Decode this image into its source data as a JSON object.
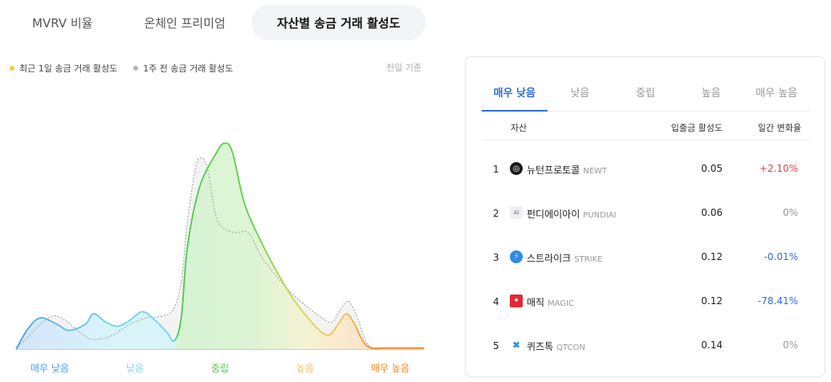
{
  "top_tabs": [
    {
      "label": "MVRV 비율",
      "active": false
    },
    {
      "label": "온체인 프리미엄",
      "active": false
    },
    {
      "label": "자산별 송금 거래 활성도",
      "active": true
    }
  ],
  "legend": {
    "current": {
      "label": "최근 1일 송금 거래 활성도",
      "color": "#f2c94c"
    },
    "previous": {
      "label": "1주 전 송금 거래 활성도",
      "color": "#b5b5b5"
    }
  },
  "basis_label": "전일 기준",
  "chart_data": {
    "type": "area",
    "x_range": [
      0,
      100
    ],
    "y_range": [
      0,
      100
    ],
    "categories": [
      {
        "label": "매우 낮음",
        "color": "#4a9ee8"
      },
      {
        "label": "낮음",
        "color": "#7fd8ea"
      },
      {
        "label": "중립",
        "color": "#4cc84a"
      },
      {
        "label": "높음",
        "color": "#f3c05c"
      },
      {
        "label": "매우 높음",
        "color": "#f0891c"
      }
    ],
    "series": [
      {
        "name": "최근 1일 송금 거래 활성도",
        "style": "gradient-area",
        "points": [
          [
            0,
            0
          ],
          [
            3,
            10
          ],
          [
            6,
            15
          ],
          [
            10,
            12
          ],
          [
            13,
            9
          ],
          [
            17,
            12
          ],
          [
            19,
            17
          ],
          [
            22,
            13
          ],
          [
            25,
            11
          ],
          [
            28,
            14
          ],
          [
            31,
            18
          ],
          [
            34,
            14
          ],
          [
            37,
            8
          ],
          [
            38.8,
            4
          ],
          [
            40.5,
            15
          ],
          [
            42,
            49
          ],
          [
            45,
            78
          ],
          [
            49,
            94
          ],
          [
            51,
            99
          ],
          [
            53,
            95
          ],
          [
            56,
            70
          ],
          [
            60,
            52
          ],
          [
            64,
            37
          ],
          [
            68,
            24
          ],
          [
            72,
            14
          ],
          [
            75,
            8
          ],
          [
            77,
            7
          ],
          [
            79,
            12
          ],
          [
            81,
            17
          ],
          [
            83,
            12
          ],
          [
            85,
            4
          ],
          [
            87,
            0.5
          ],
          [
            90,
            0.5
          ],
          [
            95,
            0.5
          ],
          [
            100,
            0.5
          ]
        ]
      },
      {
        "name": "1주 전 송금 거래 활성도",
        "style": "dashed-grey-area",
        "points": [
          [
            0,
            0
          ],
          [
            3,
            6
          ],
          [
            6,
            12
          ],
          [
            9,
            16
          ],
          [
            12,
            14
          ],
          [
            15,
            9
          ],
          [
            18,
            5
          ],
          [
            21,
            5
          ],
          [
            24,
            7
          ],
          [
            28,
            12
          ],
          [
            32,
            15
          ],
          [
            36,
            16
          ],
          [
            38.5,
            19
          ],
          [
            40.5,
            32
          ],
          [
            42,
            61
          ],
          [
            44,
            87
          ],
          [
            45.5,
            92
          ],
          [
            47,
            86
          ],
          [
            49,
            64
          ],
          [
            51,
            58
          ],
          [
            54,
            56
          ],
          [
            57,
            56
          ],
          [
            60,
            45
          ],
          [
            63,
            37
          ],
          [
            67,
            28
          ],
          [
            71,
            21
          ],
          [
            75,
            15
          ],
          [
            77.5,
            13
          ],
          [
            79.5,
            19
          ],
          [
            81.5,
            23
          ],
          [
            83.5,
            16
          ],
          [
            85.5,
            5
          ],
          [
            87,
            1
          ],
          [
            90,
            0.5
          ],
          [
            95,
            0.5
          ],
          [
            100,
            0.5
          ]
        ]
      }
    ]
  },
  "card": {
    "tabs": [
      {
        "label": "매우 낮음",
        "active": true
      },
      {
        "label": "낮음",
        "active": false
      },
      {
        "label": "중립",
        "active": false
      },
      {
        "label": "높음",
        "active": false
      },
      {
        "label": "매우 높음",
        "active": false
      }
    ],
    "headers": {
      "asset": "자산",
      "activity": "입출금 활성도",
      "change": "일간 변화율"
    },
    "rows": [
      {
        "rank": "1",
        "name": "뉴턴프로토콜",
        "ticker": "NEWT",
        "activity": "0.05",
        "change": "+2.10%",
        "change_color": "#e5404c",
        "icon": "newton-protocol-icon",
        "icon_bg": "#1b1b1b",
        "icon_glyph": "◎"
      },
      {
        "rank": "2",
        "name": "펀디에이아이",
        "ticker": "PUNDIAI",
        "activity": "0.06",
        "change": "0%",
        "change_color": "#9a9a9a",
        "icon": "pundiai-icon",
        "icon_bg": "#e8e8ee",
        "icon_glyph": "AI"
      },
      {
        "rank": "3",
        "name": "스트라이크",
        "ticker": "STRIKE",
        "activity": "0.12",
        "change": "-0.01%",
        "change_color": "#2f6ed8",
        "icon": "strike-bolt-icon",
        "icon_bg": "#2f8be8",
        "icon_glyph": "⚡"
      },
      {
        "rank": "4",
        "name": "매직",
        "ticker": "MAGIC",
        "activity": "0.12",
        "change": "-78.41%",
        "change_color": "#2f6ed8",
        "icon": "magic-icon",
        "icon_bg": "#e02a36",
        "icon_glyph": "✦"
      },
      {
        "rank": "5",
        "name": "퀴즈톡",
        "ticker": "QTCON",
        "activity": "0.14",
        "change": "0%",
        "change_color": "#9a9a9a",
        "icon": "quiztok-icon",
        "icon_bg": "#ffffff",
        "icon_glyph": "✖"
      }
    ]
  }
}
